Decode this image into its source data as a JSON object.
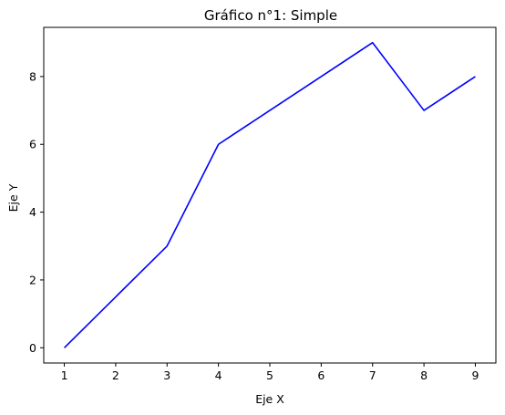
{
  "chart_data": {
    "type": "line",
    "title": "Gráfico n°1: Simple",
    "xlabel": "Eje X",
    "ylabel": "Eje Y",
    "x": [
      1,
      2,
      3,
      4,
      5,
      6,
      7,
      8,
      9
    ],
    "series": [
      {
        "values": [
          0,
          1.5,
          3,
          6,
          7,
          8,
          9,
          7,
          8
        ],
        "color": "#0000ff"
      }
    ],
    "xlim": [
      0.6,
      9.4
    ],
    "ylim": [
      -0.45,
      9.45
    ],
    "xticks": [
      1,
      2,
      3,
      4,
      5,
      6,
      7,
      8,
      9
    ],
    "yticks": [
      0,
      2,
      4,
      6,
      8
    ],
    "grid": false,
    "legend": false
  }
}
